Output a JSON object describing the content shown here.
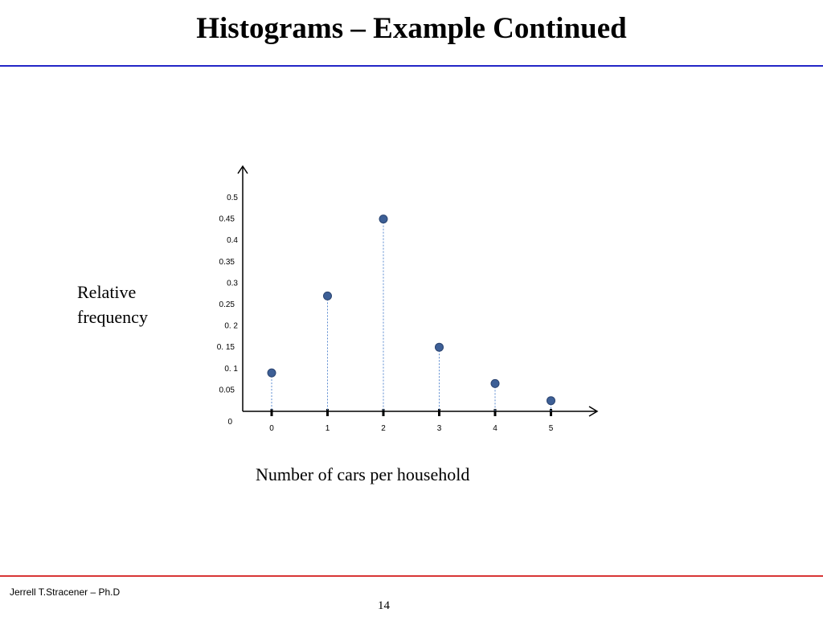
{
  "slide": {
    "title": "Histograms – Example Continued",
    "footer_author": "Jerrell T.Stracener – Ph.D",
    "page_number": "14"
  },
  "colors": {
    "title_rule": "#2326c7",
    "footer_rule": "#d83636",
    "marker": "#3d5f96",
    "stem": "#5b8bd0"
  },
  "chart_data": {
    "type": "scatter",
    "ylabel": "Relative frequency",
    "xlabel": "Number of cars per household",
    "x_ticks": [
      "0",
      "1",
      "2",
      "3",
      "4",
      "5"
    ],
    "y_ticks": [
      "0",
      "0.05",
      "0. 1",
      "0. 15",
      "0. 2",
      "0.25",
      "0.3",
      "0.35",
      "0.4",
      "0.45",
      "0.5"
    ],
    "ylim": [
      0,
      0.5
    ],
    "grid": false,
    "points": [
      {
        "x": 0,
        "y": 0.09
      },
      {
        "x": 1,
        "y": 0.27
      },
      {
        "x": 2,
        "y": 0.45
      },
      {
        "x": 3,
        "y": 0.15
      },
      {
        "x": 4,
        "y": 0.065
      },
      {
        "x": 5,
        "y": 0.025
      }
    ]
  }
}
